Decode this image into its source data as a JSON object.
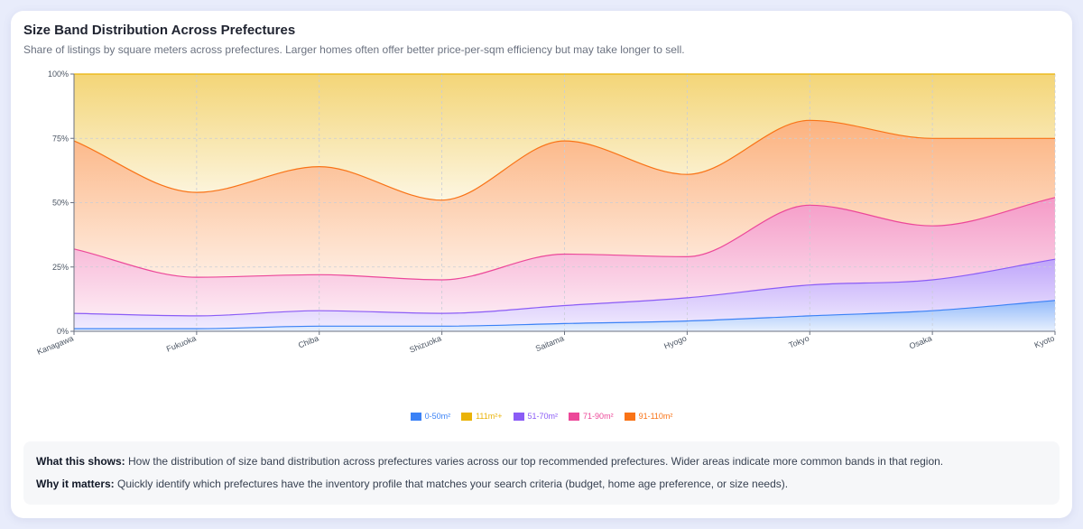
{
  "header": {
    "title": "Size Band Distribution Across Prefectures",
    "subtitle": "Share of listings by square meters across prefectures. Larger homes often offer better price-per-sqm efficiency but may take longer to sell."
  },
  "chart_data": {
    "type": "area",
    "stacked": true,
    "categories": [
      "Kanagawa",
      "Fukuoka",
      "Chiba",
      "Shizuoka",
      "Saitama",
      "Hyogo",
      "Tokyo",
      "Osaka",
      "Kyoto"
    ],
    "yticks": [
      "0%",
      "25%",
      "50%",
      "75%",
      "100%"
    ],
    "ylim": [
      0,
      100
    ],
    "grid": true,
    "legend_position": "bottom",
    "series": [
      {
        "name": "0-50m²",
        "color": "#3b82f6",
        "values": [
          1,
          1,
          2,
          2,
          3,
          4,
          6,
          8,
          12
        ]
      },
      {
        "name": "51-70m²",
        "color": "#8b5cf6",
        "values": [
          6,
          5,
          6,
          5,
          7,
          9,
          12,
          12,
          16
        ]
      },
      {
        "name": "71-90m²",
        "color": "#ec4899",
        "values": [
          25,
          15,
          14,
          13,
          20,
          16,
          31,
          21,
          24
        ]
      },
      {
        "name": "91-110m²",
        "color": "#f97316",
        "values": [
          42,
          33,
          42,
          31,
          44,
          32,
          33,
          34,
          23
        ]
      },
      {
        "name": "111m²+",
        "color": "#eab308",
        "values": [
          26,
          46,
          36,
          49,
          26,
          39,
          18,
          25,
          25
        ]
      }
    ],
    "legend_order": [
      "0-50m²",
      "111m²+",
      "51-70m²",
      "71-90m²",
      "91-110m²"
    ]
  },
  "info": {
    "what_label": "What this shows:",
    "what_text": "How the distribution of size band distribution across prefectures varies across our top recommended prefectures. Wider areas indicate more common bands in that region.",
    "why_label": "Why it matters:",
    "why_text": "Quickly identify which prefectures have the inventory profile that matches your search criteria (budget, home age preference, or size needs)."
  }
}
